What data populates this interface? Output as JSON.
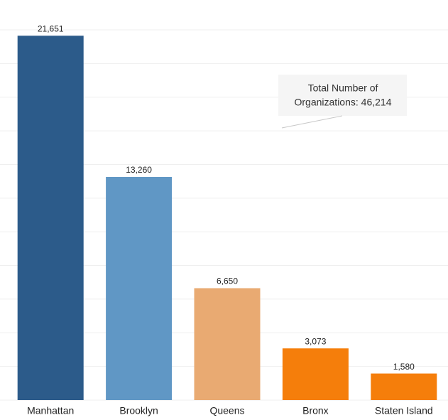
{
  "chart_data": {
    "type": "bar",
    "categories": [
      "Manhattan",
      "Brooklyn",
      "Queens",
      "Bronx",
      "Staten Island"
    ],
    "values": [
      21651,
      13260,
      6650,
      3073,
      1580
    ],
    "value_labels": [
      "21,651",
      "13,260",
      "6,650",
      "3,073",
      "1,580"
    ],
    "colors": [
      "#2c5b8a",
      "#6097c5",
      "#e9aa72",
      "#f57e0b",
      "#f57e0b"
    ],
    "ylim": [
      0,
      22000
    ],
    "yticks": [
      0,
      2000,
      4000,
      6000,
      8000,
      10000,
      12000,
      14000,
      16000,
      18000,
      20000,
      22000
    ],
    "grid": true,
    "annotation": [
      "Total Number of",
      "Organizations: 46,214"
    ]
  }
}
